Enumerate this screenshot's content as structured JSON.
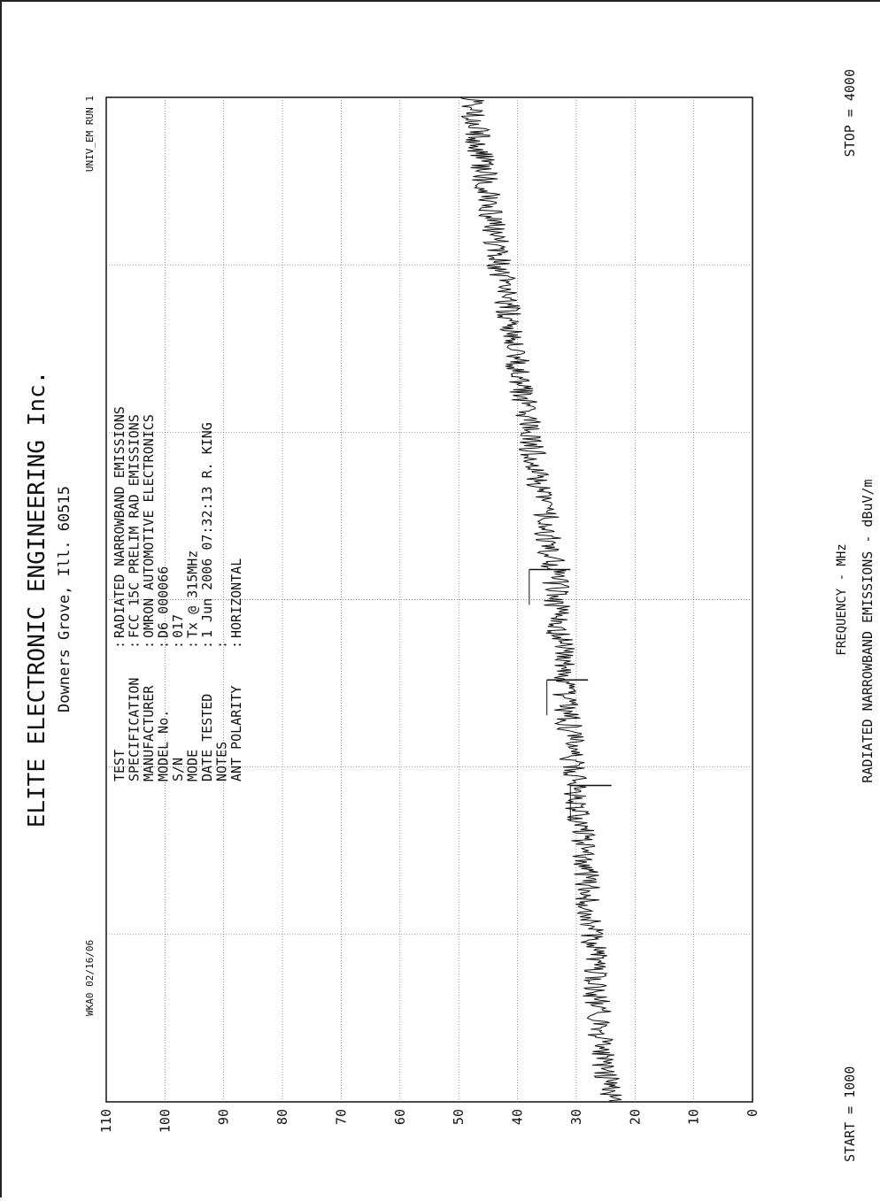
{
  "header": {
    "company": "ELITE ELECTRONIC ENGINEERING Inc.",
    "location": "Downers Grove, Ill. 60515",
    "left_code": "WKA0 02/16/06",
    "right_code": "UNIV_EM  RUN 1"
  },
  "info": {
    "rows": [
      {
        "label": "TEST",
        "sep": ":",
        "value": "RADIATED NARROWBAND EMISSIONS"
      },
      {
        "label": "SPECIFICATION",
        "sep": ":",
        "value": "FCC 15C PRELIM RAD EMISSIONS"
      },
      {
        "label": "MANUFACTURER",
        "sep": ":",
        "value": "OMRON AUTOMOTIVE ELECTRONICS"
      },
      {
        "label": "MODEL No.",
        "sep": ":",
        "value": "D6 000066"
      },
      {
        "label": "S/N",
        "sep": ":",
        "value": "017"
      },
      {
        "label": "MODE",
        "sep": ":",
        "value": "Tx @ 315MHz"
      },
      {
        "label": "DATE TESTED",
        "sep": ":",
        "value": "1 Jun 2006  07:32:13  R. KING"
      },
      {
        "label": "NOTES",
        "sep": ":",
        "value": ""
      },
      {
        "label": "ANT POLARITY",
        "sep": ":",
        "value": "HORIZONTAL"
      }
    ]
  },
  "chart_data": {
    "type": "line",
    "ylabel": "RADIATED NARROWBAND EMISSIONS - dBuV/m",
    "xlabel": "FREQUENCY - MHz",
    "start_label": "START = 1000",
    "stop_label": "STOP = 4000",
    "xlim": [
      1000,
      4000
    ],
    "ylim": [
      0,
      110
    ],
    "y_ticks": [
      "0",
      "10",
      "20",
      "30",
      "40",
      "50",
      "60",
      "70",
      "80",
      "90",
      "100",
      "110"
    ],
    "grid": true,
    "series": [
      {
        "values_x": [
          1000,
          1050,
          1100,
          1150,
          1200,
          1250,
          1300,
          1350,
          1400,
          1450,
          1500,
          1550,
          1600,
          1650,
          1700,
          1750,
          1800,
          1850,
          1900,
          1950,
          2000,
          2050,
          2100,
          2150,
          2200,
          2250,
          2300,
          2350,
          2400,
          2450,
          2500,
          2550,
          2600,
          2650,
          2700,
          2750,
          2800,
          2850,
          2900,
          2950,
          3000,
          3050,
          3100,
          3150,
          3200,
          3250,
          3300,
          3350,
          3400,
          3450,
          3500,
          3550,
          3600,
          3650,
          3700,
          3750,
          3800,
          3850,
          3900,
          3950,
          4000
        ],
        "values_y": [
          24,
          24.5,
          25,
          25.5,
          26,
          26,
          26.5,
          27,
          27,
          27,
          27.5,
          27.5,
          28,
          28,
          28.5,
          29,
          29,
          29.5,
          30,
          30,
          30.5,
          31,
          31,
          31.5,
          32,
          32,
          32,
          32.5,
          33,
          33,
          33.5,
          33.5,
          34,
          34.5,
          35,
          35,
          36,
          36.5,
          37,
          37.5,
          38,
          38.5,
          39,
          39.5,
          40,
          40.5,
          41,
          41.5,
          42,
          42.5,
          43,
          43.5,
          44,
          44.5,
          45,
          45.5,
          46,
          46.5,
          47,
          47.5,
          48
        ],
        "spikes": [
          {
            "x": 1945,
            "y": 31
          },
          {
            "x": 2260,
            "y": 35
          },
          {
            "x": 2590,
            "y": 38
          }
        ]
      }
    ]
  }
}
